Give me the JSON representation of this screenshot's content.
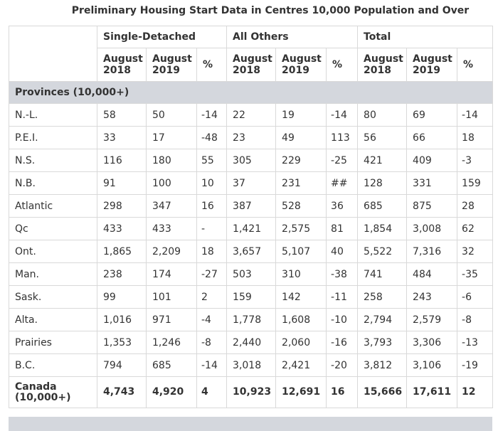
{
  "title": "Preliminary Housing Start Data in Centres 10,000 Population and Over",
  "groups": [
    "Single-Detached",
    "All Others",
    "Total"
  ],
  "sub_headers": [
    "August 2018",
    "August 2019",
    "%"
  ],
  "section_label": "Provinces (10,000+)",
  "rows": [
    [
      "N.-L.",
      "58",
      "50",
      "-14",
      "22",
      "19",
      "-14",
      "80",
      "69",
      "-14"
    ],
    [
      "P.E.I.",
      "33",
      "17",
      "-48",
      "23",
      "49",
      "113",
      "56",
      "66",
      "18"
    ],
    [
      "N.S.",
      "116",
      "180",
      "55",
      "305",
      "229",
      "-25",
      "421",
      "409",
      "-3"
    ],
    [
      "N.B.",
      "91",
      "100",
      "10",
      "37",
      "231",
      "##",
      "128",
      "331",
      "159"
    ],
    [
      "Atlantic",
      "298",
      "347",
      "16",
      "387",
      "528",
      "36",
      "685",
      "875",
      "28"
    ],
    [
      "Qc",
      "433",
      "433",
      "-",
      "1,421",
      "2,575",
      "81",
      "1,854",
      "3,008",
      "62"
    ],
    [
      "Ont.",
      "1,865",
      "2,209",
      "18",
      "3,657",
      "5,107",
      "40",
      "5,522",
      "7,316",
      "32"
    ],
    [
      "Man.",
      "238",
      "174",
      "-27",
      "503",
      "310",
      "-38",
      "741",
      "484",
      "-35"
    ],
    [
      "Sask.",
      "99",
      "101",
      "2",
      "159",
      "142",
      "-11",
      "258",
      "243",
      "-6"
    ],
    [
      "Alta.",
      "1,016",
      "971",
      "-4",
      "1,778",
      "1,608",
      "-10",
      "2,794",
      "2,579",
      "-8"
    ],
    [
      "Prairies",
      "1,353",
      "1,246",
      "-8",
      "2,440",
      "2,060",
      "-16",
      "3,793",
      "3,306",
      "-13"
    ],
    [
      "B.C.",
      "794",
      "685",
      "-14",
      "3,018",
      "2,421",
      "-20",
      "3,812",
      "3,106",
      "-19"
    ]
  ],
  "total_row": [
    "Canada (10,000+)",
    "4,743",
    "4,920",
    "4",
    "10,923",
    "12,691",
    "16",
    "15,666",
    "17,611",
    "12"
  ]
}
